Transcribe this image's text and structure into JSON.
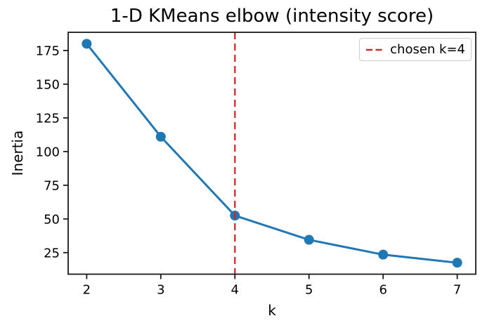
{
  "chart_data": {
    "type": "line",
    "title": "1-D KMeans elbow (intensity score)",
    "xlabel": "k",
    "ylabel": "Inertia",
    "x": [
      2,
      3,
      4,
      5,
      6,
      7
    ],
    "series": [
      {
        "name": "inertia",
        "values": [
          180,
          111,
          52.5,
          34.5,
          23.5,
          17.5
        ]
      }
    ],
    "xticks": [
      2,
      3,
      4,
      5,
      6,
      7
    ],
    "yticks": [
      25,
      50,
      75,
      100,
      125,
      150,
      175
    ],
    "xlim": [
      1.75,
      7.25
    ],
    "ylim": [
      9,
      188.5
    ],
    "grid": false,
    "line_color": "#1f77b4",
    "marker": "circle",
    "vline": {
      "x": 4,
      "color": "#d62728",
      "style": "dashed",
      "label": "chosen k=4"
    },
    "legend": {
      "position": "upper right",
      "entries": [
        "chosen k=4"
      ]
    }
  }
}
